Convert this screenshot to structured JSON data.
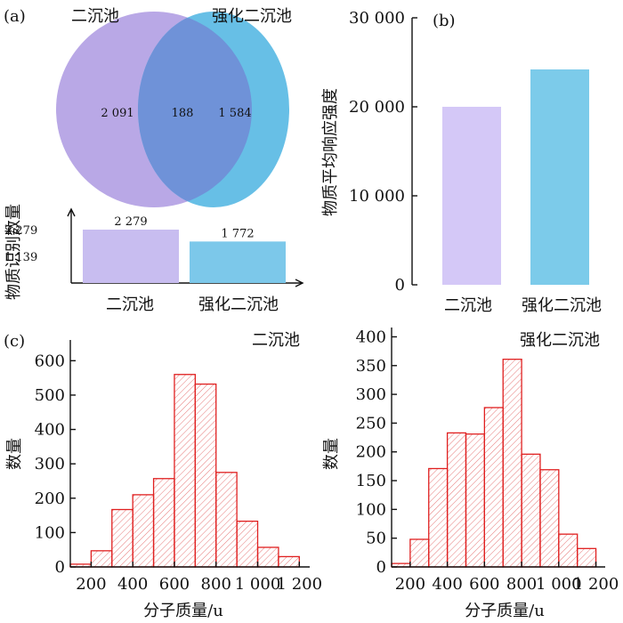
{
  "chart_data": [
    {
      "panel": "(a)",
      "type": "venn",
      "sets": [
        {
          "name": "二沉池",
          "unique": "2 091",
          "color": "#b9a8e6"
        },
        {
          "name": "强化二沉池",
          "unique": "1 584",
          "color": "#67bfe6"
        }
      ],
      "intersection": "188",
      "overlap_color": "#6f92d8"
    },
    {
      "panel": "(a)",
      "type": "bar",
      "ylabel": "物质识别数量",
      "categories": [
        "二沉池",
        "强化二沉池"
      ],
      "values": [
        2279,
        1772
      ],
      "value_labels": [
        "2 279",
        "1 772"
      ],
      "ylim": [
        0,
        2279
      ],
      "yticks": [
        {
          "value": 1139,
          "label": "1 139"
        },
        {
          "value": 2279,
          "label": "2 279"
        }
      ],
      "colors": [
        "#c8bdf0",
        "#7cc8ea"
      ]
    },
    {
      "panel": "(b)",
      "type": "bar",
      "ylabel": "物质平均响应强度",
      "categories": [
        "二沉池",
        "强化二沉池"
      ],
      "values": [
        20000,
        24200
      ],
      "ylim": [
        0,
        30000
      ],
      "yticks": [
        {
          "value": 0,
          "label": "0"
        },
        {
          "value": 10000,
          "label": "10 000"
        },
        {
          "value": 20000,
          "label": "20 000"
        },
        {
          "value": 30000,
          "label": "30 000"
        }
      ],
      "colors": [
        "#d4c8f7",
        "#7ccbea"
      ]
    },
    {
      "panel": "(c)",
      "type": "bar",
      "title": "二沉池",
      "xlabel": "分子质量/u",
      "ylabel": "数量",
      "bin_edges": [
        100,
        200,
        300,
        400,
        500,
        600,
        700,
        800,
        900,
        1000,
        1100,
        1200
      ],
      "values": [
        8,
        47,
        167,
        210,
        257,
        560,
        532,
        275,
        133,
        57,
        30
      ],
      "xlim": [
        100,
        1250
      ],
      "ylim": [
        0,
        650
      ],
      "xticks": [
        {
          "value": 200,
          "label": "200"
        },
        {
          "value": 400,
          "label": "400"
        },
        {
          "value": 600,
          "label": "600"
        },
        {
          "value": 800,
          "label": "800"
        },
        {
          "value": 1000,
          "label": "1 000"
        },
        {
          "value": 1200,
          "label": "1 200"
        }
      ],
      "yticks": [
        {
          "value": 0,
          "label": "0"
        },
        {
          "value": 100,
          "label": "100"
        },
        {
          "value": 200,
          "label": "200"
        },
        {
          "value": 300,
          "label": "300"
        },
        {
          "value": 400,
          "label": "400"
        },
        {
          "value": 500,
          "label": "500"
        },
        {
          "value": 600,
          "label": "600"
        }
      ],
      "edge_color": "#e02020"
    },
    {
      "panel": "",
      "type": "bar",
      "title": "强化二沉池",
      "xlabel": "分子质量/u",
      "ylabel": "数量",
      "bin_edges": [
        100,
        200,
        300,
        400,
        500,
        600,
        700,
        800,
        900,
        1000,
        1100,
        1200
      ],
      "values": [
        6,
        48,
        171,
        233,
        231,
        277,
        361,
        196,
        169,
        57,
        32
      ],
      "xlim": [
        100,
        1250
      ],
      "ylim": [
        0,
        410
      ],
      "xticks": [
        {
          "value": 200,
          "label": "200"
        },
        {
          "value": 400,
          "label": "400"
        },
        {
          "value": 600,
          "label": "600"
        },
        {
          "value": 800,
          "label": "800"
        },
        {
          "value": 1000,
          "label": "1 000"
        },
        {
          "value": 1200,
          "label": "1 200"
        }
      ],
      "yticks": [
        {
          "value": 0,
          "label": "0"
        },
        {
          "value": 50,
          "label": "50"
        },
        {
          "value": 100,
          "label": "100"
        },
        {
          "value": 150,
          "label": "150"
        },
        {
          "value": 200,
          "label": "200"
        },
        {
          "value": 250,
          "label": "250"
        },
        {
          "value": 300,
          "label": "300"
        },
        {
          "value": 350,
          "label": "350"
        },
        {
          "value": 400,
          "label": "400"
        }
      ],
      "edge_color": "#e02020"
    }
  ]
}
